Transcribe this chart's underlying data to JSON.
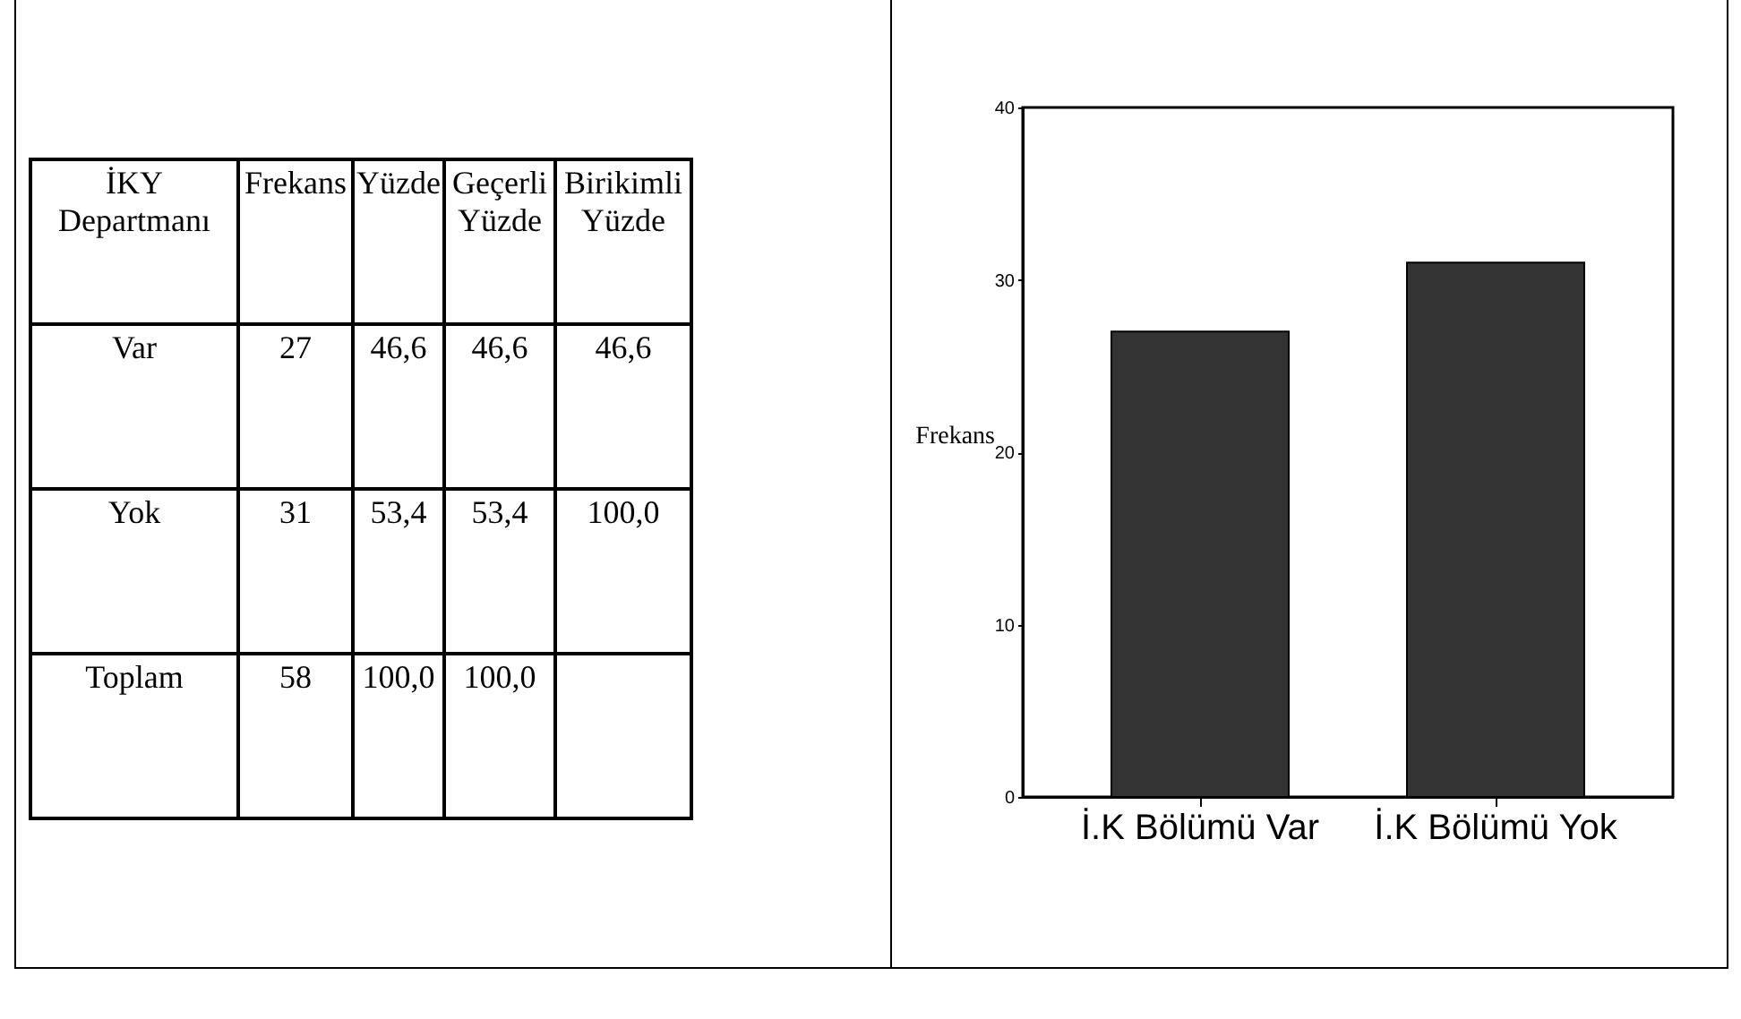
{
  "chart_data": [
    {
      "type": "other",
      "annotations": [
        "İKY Departmanı",
        "Frekans",
        "Yüzde",
        "Geçerli Yüzde",
        "Birikimli Yüzde",
        "Var",
        "27",
        "46,6",
        "46,6",
        "46,6",
        "Yok",
        "31",
        "53,4",
        "53,4",
        "100,0",
        "Toplam",
        "58",
        "100,0",
        "100,0"
      ]
    },
    {
      "type": "bar",
      "categories": [
        "İ.K Bölümü Var",
        "İ.K Bölümü Yok"
      ],
      "values": [
        27,
        31
      ],
      "color": "#333333",
      "ylim": [
        0,
        40
      ],
      "yticks": [
        0,
        10,
        20,
        30,
        40
      ],
      "ylabel": "Frekans",
      "grid": false
    }
  ]
}
